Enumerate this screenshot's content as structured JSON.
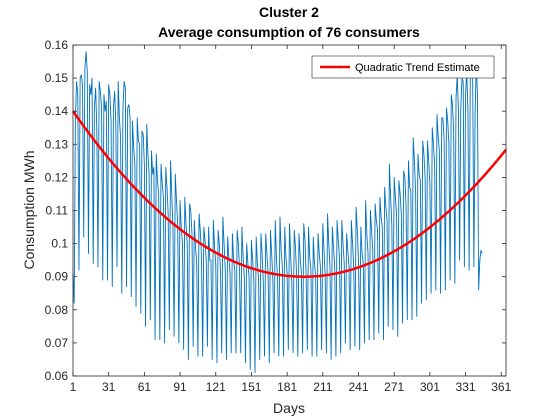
{
  "chart_data": {
    "type": "line",
    "title": "Cluster 2",
    "subtitle": "Average consumption of 76 consumers",
    "xlabel": "Days",
    "ylabel": "Consumption MWh",
    "xlim": [
      1,
      365
    ],
    "ylim": [
      0.06,
      0.16
    ],
    "xticks": [
      1,
      31,
      61,
      91,
      121,
      151,
      181,
      211,
      241,
      271,
      301,
      331,
      361
    ],
    "yticks": [
      0.06,
      0.07,
      0.08,
      0.09,
      0.1,
      0.11,
      0.12,
      0.13,
      0.14,
      0.15,
      0.16
    ],
    "ytick_labels": [
      "0.06",
      "0.07",
      "0.08",
      "0.09",
      "0.1",
      "0.11",
      "0.12",
      "0.13",
      "0.14",
      "0.15",
      "0.16"
    ],
    "grid": false,
    "legend_position": "top-right",
    "series": [
      {
        "name": "",
        "color": "#0072BD",
        "description_kind": "daily average consumption",
        "values": [
          0.091,
          0.082,
          0.138,
          0.149,
          0.145,
          0.092,
          0.15,
          0.151,
          0.148,
          0.102,
          0.153,
          0.158,
          0.152,
          0.097,
          0.148,
          0.145,
          0.15,
          0.094,
          0.141,
          0.147,
          0.135,
          0.093,
          0.149,
          0.146,
          0.141,
          0.089,
          0.145,
          0.14,
          0.143,
          0.089,
          0.148,
          0.145,
          0.137,
          0.087,
          0.141,
          0.146,
          0.136,
          0.093,
          0.149,
          0.138,
          0.132,
          0.085,
          0.141,
          0.149,
          0.147,
          0.087,
          0.141,
          0.142,
          0.138,
          0.084,
          0.137,
          0.129,
          0.124,
          0.081,
          0.138,
          0.131,
          0.13,
          0.079,
          0.134,
          0.133,
          0.124,
          0.075,
          0.136,
          0.127,
          0.121,
          0.077,
          0.128,
          0.121,
          0.123,
          0.071,
          0.127,
          0.119,
          0.115,
          0.071,
          0.124,
          0.118,
          0.114,
          0.07,
          0.123,
          0.117,
          0.109,
          0.074,
          0.125,
          0.115,
          0.105,
          0.072,
          0.121,
          0.113,
          0.106,
          0.07,
          0.113,
          0.105,
          0.1,
          0.068,
          0.114,
          0.106,
          0.1,
          0.065,
          0.112,
          0.11,
          0.103,
          0.069,
          0.107,
          0.099,
          0.094,
          0.066,
          0.109,
          0.104,
          0.096,
          0.066,
          0.105,
          0.101,
          0.095,
          0.069,
          0.105,
          0.095,
          0.095,
          0.065,
          0.107,
          0.099,
          0.094,
          0.064,
          0.104,
          0.1,
          0.092,
          0.067,
          0.108,
          0.1,
          0.092,
          0.065,
          0.102,
          0.096,
          0.091,
          0.067,
          0.103,
          0.095,
          0.092,
          0.067,
          0.104,
          0.1,
          0.092,
          0.067,
          0.105,
          0.096,
          0.09,
          0.064,
          0.1,
          0.094,
          0.09,
          0.062,
          0.101,
          0.095,
          0.089,
          0.061,
          0.102,
          0.094,
          0.089,
          0.065,
          0.103,
          0.097,
          0.088,
          0.066,
          0.103,
          0.097,
          0.091,
          0.064,
          0.104,
          0.097,
          0.089,
          0.067,
          0.107,
          0.096,
          0.089,
          0.066,
          0.108,
          0.098,
          0.093,
          0.066,
          0.105,
          0.096,
          0.091,
          0.068,
          0.106,
          0.096,
          0.088,
          0.067,
          0.104,
          0.099,
          0.09,
          0.066,
          0.103,
          0.096,
          0.091,
          0.067,
          0.106,
          0.101,
          0.09,
          0.068,
          0.105,
          0.096,
          0.092,
          0.066,
          0.102,
          0.094,
          0.09,
          0.066,
          0.103,
          0.097,
          0.093,
          0.068,
          0.106,
          0.098,
          0.09,
          0.067,
          0.109,
          0.1,
          0.093,
          0.065,
          0.105,
          0.099,
          0.093,
          0.066,
          0.107,
          0.101,
          0.096,
          0.067,
          0.107,
          0.1,
          0.094,
          0.07,
          0.103,
          0.098,
          0.093,
          0.068,
          0.107,
          0.1,
          0.093,
          0.069,
          0.111,
          0.104,
          0.095,
          0.068,
          0.105,
          0.097,
          0.094,
          0.07,
          0.113,
          0.103,
          0.097,
          0.071,
          0.11,
          0.104,
          0.098,
          0.071,
          0.112,
          0.107,
          0.104,
          0.073,
          0.114,
          0.108,
          0.105,
          0.071,
          0.117,
          0.111,
          0.107,
          0.075,
          0.124,
          0.114,
          0.106,
          0.074,
          0.12,
          0.114,
          0.109,
          0.072,
          0.119,
          0.115,
          0.109,
          0.076,
          0.122,
          0.12,
          0.111,
          0.077,
          0.125,
          0.117,
          0.116,
          0.077,
          0.132,
          0.125,
          0.116,
          0.078,
          0.127,
          0.121,
          0.119,
          0.082,
          0.131,
          0.127,
          0.12,
          0.083,
          0.131,
          0.125,
          0.118,
          0.085,
          0.135,
          0.13,
          0.124,
          0.086,
          0.139,
          0.132,
          0.128,
          0.085,
          0.138,
          0.138,
          0.131,
          0.086,
          0.141,
          0.137,
          0.13,
          0.089,
          0.145,
          0.142,
          0.134,
          0.088,
          0.144,
          0.151,
          0.14,
          0.095,
          0.141,
          0.15,
          0.149,
          0.093,
          0.145,
          0.152,
          0.14,
          0.092,
          0.151,
          0.154,
          0.15,
          0.093,
          0.139,
          0.154,
          0.145,
          0.086,
          0.095,
          0.098,
          0.097
        ]
      },
      {
        "name": "Quadratic Trend Estimate",
        "color": "#FF0000",
        "quadratic": {
          "vertex_x": 195,
          "vertex_y": 0.09,
          "value_at_x1": 0.14
        }
      }
    ]
  }
}
